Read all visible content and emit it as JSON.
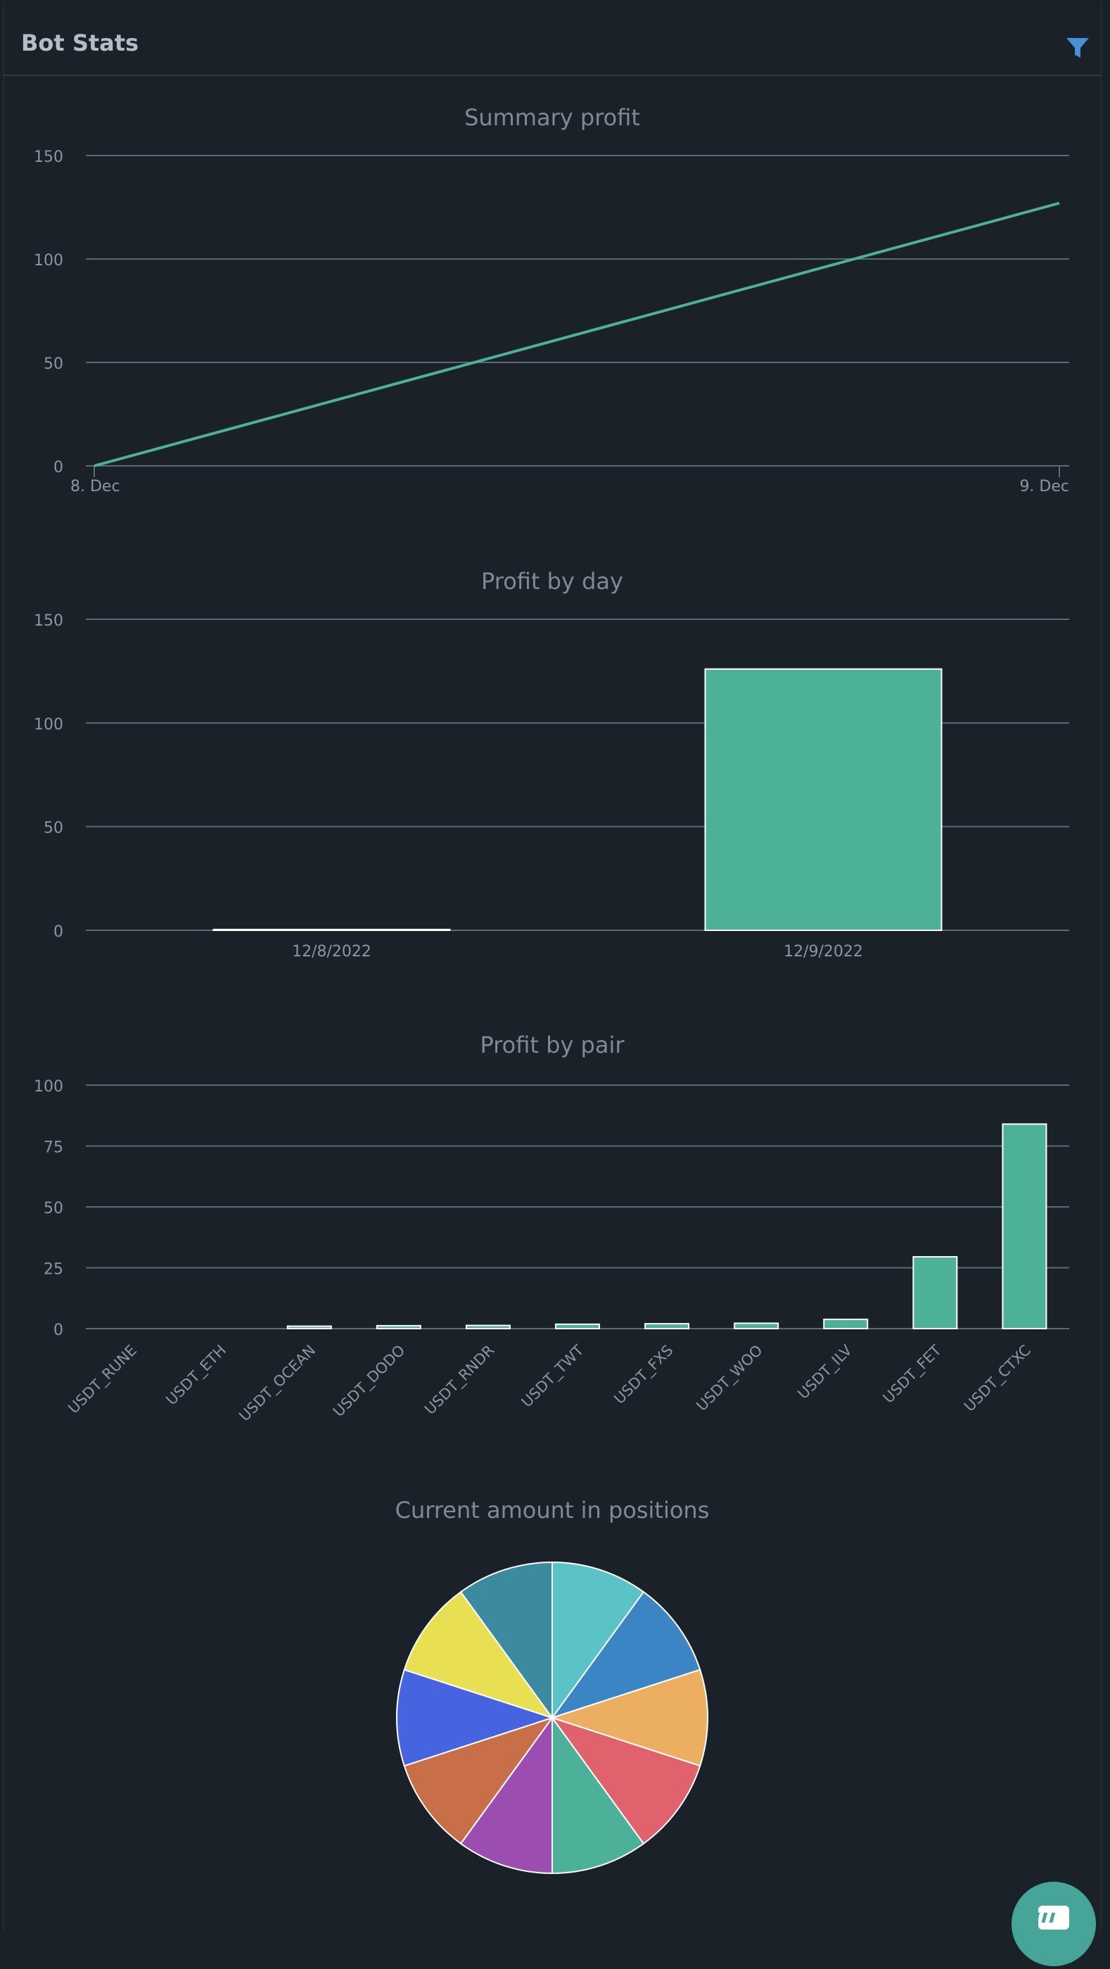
{
  "header": {
    "title": "Bot Stats",
    "filter_icon": "filter-icon"
  },
  "colors": {
    "background": "#1b2128",
    "grid": "#5c6a78",
    "text": "#8a96a3",
    "title_text": "#7d8a97",
    "accent": "#4db098"
  },
  "chart_data": [
    {
      "type": "line",
      "title": "Summary profit",
      "x": [
        "8. Dec",
        "9. Dec"
      ],
      "y": [
        0,
        127
      ],
      "yticks": [
        0,
        50,
        100,
        150
      ],
      "ylim": [
        0,
        150
      ],
      "grid": true,
      "legend": "none"
    },
    {
      "type": "bar",
      "title": "Profit by day",
      "categories": [
        "12/8/2022",
        "12/9/2022"
      ],
      "values": [
        0.4,
        126
      ],
      "yticks": [
        0,
        50,
        100,
        150
      ],
      "ylim": [
        0,
        150
      ],
      "grid": true
    },
    {
      "type": "bar",
      "title": "Profit by pair",
      "categories": [
        "USDT_RUNE",
        "USDT_ETH",
        "USDT_OCEAN",
        "USDT_DODO",
        "USDT_RNDR",
        "USDT_TWT",
        "USDT_FXS",
        "USDT_WOO",
        "USDT_ILV",
        "USDT_FET",
        "USDT_CTXC"
      ],
      "values": [
        0,
        0,
        1,
        1.2,
        1.3,
        1.8,
        2,
        2.2,
        3.8,
        29.5,
        84
      ],
      "yticks": [
        0,
        25,
        50,
        75,
        100
      ],
      "ylim": [
        0,
        100
      ],
      "grid": true
    },
    {
      "type": "pie",
      "title": "Current amount in positions",
      "values": [
        1,
        1,
        1,
        1,
        1,
        1,
        1,
        1,
        1,
        1
      ],
      "colors": [
        "#5bc2c6",
        "#3c85c4",
        "#ecaf62",
        "#e0626c",
        "#4db098",
        "#9b4eaf",
        "#c86f4a",
        "#4663e0",
        "#e8e052",
        "#3b8a9f"
      ]
    }
  ],
  "chat_button": {
    "icon": "chat-icon"
  }
}
